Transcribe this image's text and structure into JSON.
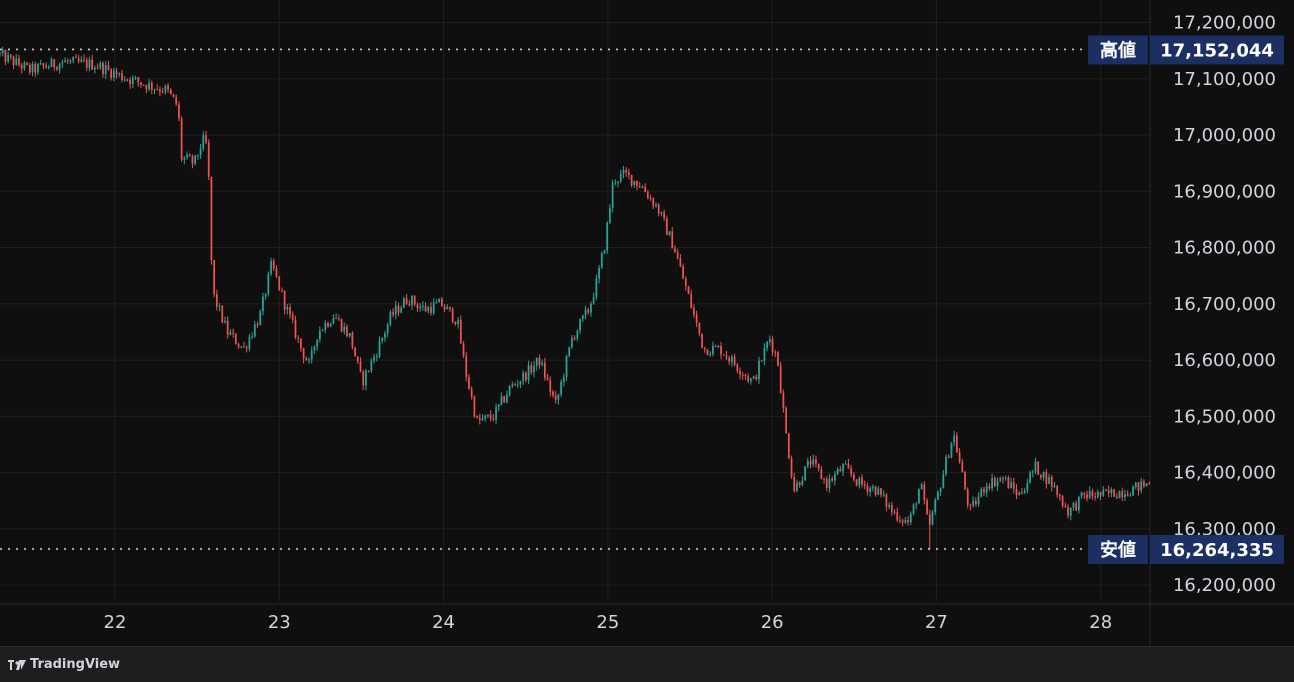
{
  "footer": {
    "brand": "TradingView"
  },
  "colors": {
    "background": "#0f0f0f",
    "up": "#26a69a",
    "down": "#ef5350",
    "grid": "#1f1f1f",
    "axisText": "#d1d4dc",
    "tagBg": "#1b2f62",
    "refLine": "#cfcfcf"
  },
  "chart_data": {
    "type": "candlestick",
    "ylim": [
      16170000,
      17240000
    ],
    "xlim": [
      21.3,
      28.3
    ],
    "yticks": [
      16200000,
      16300000,
      16400000,
      16500000,
      16600000,
      16700000,
      16800000,
      16900000,
      17000000,
      17100000,
      17200000
    ],
    "ytick_labels": [
      "16,200,000",
      "16,300,000",
      "16,400,000",
      "16,500,000",
      "16,600,000",
      "16,700,000",
      "16,800,000",
      "16,900,000",
      "17,000,000",
      "17,100,000",
      "17,200,000"
    ],
    "xticks": [
      22,
      23,
      24,
      25,
      26,
      27,
      28
    ],
    "xtick_labels": [
      "22",
      "23",
      "24",
      "25",
      "26",
      "27",
      "28"
    ],
    "high": {
      "label": "高値",
      "value": 17152044,
      "value_label": "17,152,044"
    },
    "low": {
      "label": "安値",
      "value": 16264335,
      "value_label": "16,264,335"
    },
    "path": [
      [
        21.3,
        17145000
      ],
      [
        21.5,
        17115000
      ],
      [
        21.7,
        17130000
      ],
      [
        21.9,
        17125000
      ],
      [
        22.05,
        17105000
      ],
      [
        22.2,
        17090000
      ],
      [
        22.33,
        17080000
      ],
      [
        22.4,
        17050000
      ],
      [
        22.42,
        16960000
      ],
      [
        22.5,
        16950000
      ],
      [
        22.55,
        16990000
      ],
      [
        22.58,
        16980000
      ],
      [
        22.61,
        16720000
      ],
      [
        22.7,
        16650000
      ],
      [
        22.8,
        16620000
      ],
      [
        22.9,
        16680000
      ],
      [
        22.97,
        16770000
      ],
      [
        23.05,
        16700000
      ],
      [
        23.15,
        16620000
      ],
      [
        23.2,
        16590000
      ],
      [
        23.25,
        16650000
      ],
      [
        23.35,
        16680000
      ],
      [
        23.45,
        16640000
      ],
      [
        23.52,
        16560000
      ],
      [
        23.6,
        16610000
      ],
      [
        23.7,
        16680000
      ],
      [
        23.8,
        16710000
      ],
      [
        23.9,
        16690000
      ],
      [
        24.0,
        16700000
      ],
      [
        24.1,
        16670000
      ],
      [
        24.15,
        16580000
      ],
      [
        24.22,
        16490000
      ],
      [
        24.32,
        16500000
      ],
      [
        24.42,
        16550000
      ],
      [
        24.5,
        16570000
      ],
      [
        24.6,
        16600000
      ],
      [
        24.7,
        16520000
      ],
      [
        24.8,
        16640000
      ],
      [
        24.9,
        16690000
      ],
      [
        24.95,
        16740000
      ],
      [
        25.0,
        16810000
      ],
      [
        25.05,
        16920000
      ],
      [
        25.12,
        16930000
      ],
      [
        25.22,
        16910000
      ],
      [
        25.32,
        16870000
      ],
      [
        25.42,
        16800000
      ],
      [
        25.52,
        16700000
      ],
      [
        25.6,
        16620000
      ],
      [
        25.7,
        16620000
      ],
      [
        25.8,
        16590000
      ],
      [
        25.9,
        16560000
      ],
      [
        26.0,
        16640000
      ],
      [
        26.05,
        16600000
      ],
      [
        26.1,
        16470000
      ],
      [
        26.15,
        16370000
      ],
      [
        26.25,
        16420000
      ],
      [
        26.35,
        16380000
      ],
      [
        26.45,
        16410000
      ],
      [
        26.55,
        16380000
      ],
      [
        26.65,
        16370000
      ],
      [
        26.75,
        16330000
      ],
      [
        26.85,
        16310000
      ],
      [
        26.92,
        16380000
      ],
      [
        26.97,
        16300000
      ],
      [
        27.05,
        16390000
      ],
      [
        27.12,
        16470000
      ],
      [
        27.22,
        16330000
      ],
      [
        27.32,
        16380000
      ],
      [
        27.42,
        16390000
      ],
      [
        27.52,
        16360000
      ],
      [
        27.62,
        16410000
      ],
      [
        27.72,
        16380000
      ],
      [
        27.82,
        16330000
      ],
      [
        27.92,
        16360000
      ],
      [
        28.02,
        16360000
      ],
      [
        28.12,
        16365000
      ],
      [
        28.2,
        16370000
      ],
      [
        28.3,
        16380000
      ]
    ]
  }
}
